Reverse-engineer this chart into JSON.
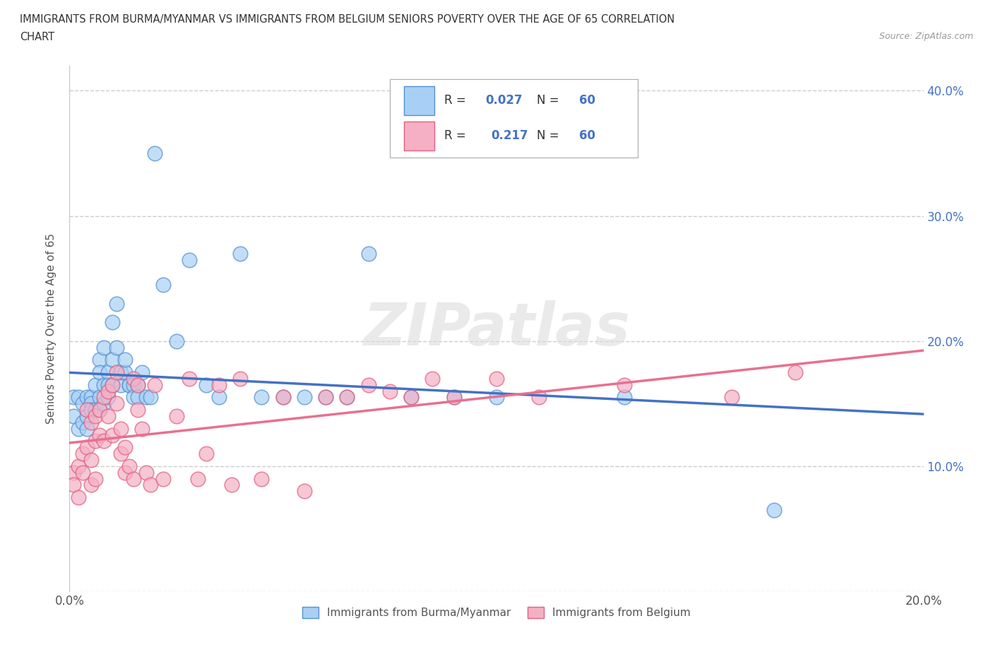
{
  "title_line1": "IMMIGRANTS FROM BURMA/MYANMAR VS IMMIGRANTS FROM BELGIUM SENIORS POVERTY OVER THE AGE OF 65 CORRELATION",
  "title_line2": "CHART",
  "source": "Source: ZipAtlas.com",
  "ylabel": "Seniors Poverty Over the Age of 65",
  "xlim": [
    0.0,
    0.2
  ],
  "ylim": [
    0.0,
    0.42
  ],
  "xticks": [
    0.0,
    0.05,
    0.1,
    0.15,
    0.2
  ],
  "xtick_labels": [
    "0.0%",
    "",
    "",
    "",
    "20.0%"
  ],
  "yticks": [
    0.0,
    0.1,
    0.2,
    0.3,
    0.4
  ],
  "ytick_labels_right": [
    "",
    "10.0%",
    "20.0%",
    "30.0%",
    "40.0%"
  ],
  "r_burma": 0.027,
  "n_burma": 60,
  "r_belgium": 0.217,
  "n_belgium": 60,
  "color_burma": "#a8d0f5",
  "color_belgium": "#f5b0c5",
  "edge_burma": "#5590d0",
  "edge_belgium": "#e06080",
  "line_color_burma": "#4472c4",
  "line_color_belgium": "#e87090",
  "blue_text": "#4472c4",
  "watermark_text": "ZIPatlas",
  "legend_label_burma": "Immigrants from Burma/Myanmar",
  "legend_label_belgium": "Immigrants from Belgium",
  "burma_x": [
    0.001,
    0.001,
    0.002,
    0.002,
    0.003,
    0.003,
    0.004,
    0.004,
    0.004,
    0.005,
    0.005,
    0.005,
    0.006,
    0.006,
    0.007,
    0.007,
    0.007,
    0.007,
    0.008,
    0.008,
    0.008,
    0.009,
    0.009,
    0.009,
    0.01,
    0.01,
    0.01,
    0.011,
    0.011,
    0.012,
    0.012,
    0.013,
    0.013,
    0.014,
    0.014,
    0.015,
    0.015,
    0.016,
    0.016,
    0.017,
    0.018,
    0.019,
    0.02,
    0.022,
    0.025,
    0.028,
    0.032,
    0.035,
    0.04,
    0.045,
    0.05,
    0.055,
    0.06,
    0.065,
    0.07,
    0.08,
    0.09,
    0.1,
    0.13,
    0.165
  ],
  "burma_y": [
    0.155,
    0.14,
    0.155,
    0.13,
    0.15,
    0.135,
    0.155,
    0.14,
    0.13,
    0.155,
    0.15,
    0.145,
    0.165,
    0.145,
    0.185,
    0.175,
    0.155,
    0.145,
    0.195,
    0.165,
    0.15,
    0.175,
    0.165,
    0.155,
    0.215,
    0.185,
    0.165,
    0.23,
    0.195,
    0.165,
    0.175,
    0.175,
    0.185,
    0.165,
    0.165,
    0.165,
    0.155,
    0.165,
    0.155,
    0.175,
    0.155,
    0.155,
    0.35,
    0.245,
    0.2,
    0.265,
    0.165,
    0.155,
    0.27,
    0.155,
    0.155,
    0.155,
    0.155,
    0.155,
    0.27,
    0.155,
    0.155,
    0.155,
    0.155,
    0.065
  ],
  "belgium_x": [
    0.001,
    0.001,
    0.002,
    0.002,
    0.003,
    0.003,
    0.004,
    0.004,
    0.005,
    0.005,
    0.005,
    0.006,
    0.006,
    0.006,
    0.007,
    0.007,
    0.008,
    0.008,
    0.009,
    0.009,
    0.01,
    0.01,
    0.011,
    0.011,
    0.012,
    0.012,
    0.013,
    0.013,
    0.014,
    0.015,
    0.015,
    0.016,
    0.016,
    0.017,
    0.018,
    0.019,
    0.02,
    0.022,
    0.025,
    0.028,
    0.03,
    0.032,
    0.035,
    0.038,
    0.04,
    0.045,
    0.05,
    0.055,
    0.06,
    0.065,
    0.07,
    0.075,
    0.08,
    0.085,
    0.09,
    0.1,
    0.11,
    0.13,
    0.155,
    0.17
  ],
  "belgium_y": [
    0.095,
    0.085,
    0.1,
    0.075,
    0.11,
    0.095,
    0.145,
    0.115,
    0.135,
    0.105,
    0.085,
    0.14,
    0.12,
    0.09,
    0.145,
    0.125,
    0.155,
    0.12,
    0.16,
    0.14,
    0.165,
    0.125,
    0.175,
    0.15,
    0.13,
    0.11,
    0.115,
    0.095,
    0.1,
    0.17,
    0.09,
    0.165,
    0.145,
    0.13,
    0.095,
    0.085,
    0.165,
    0.09,
    0.14,
    0.17,
    0.09,
    0.11,
    0.165,
    0.085,
    0.17,
    0.09,
    0.155,
    0.08,
    0.155,
    0.155,
    0.165,
    0.16,
    0.155,
    0.17,
    0.155,
    0.17,
    0.155,
    0.165,
    0.155,
    0.175
  ]
}
